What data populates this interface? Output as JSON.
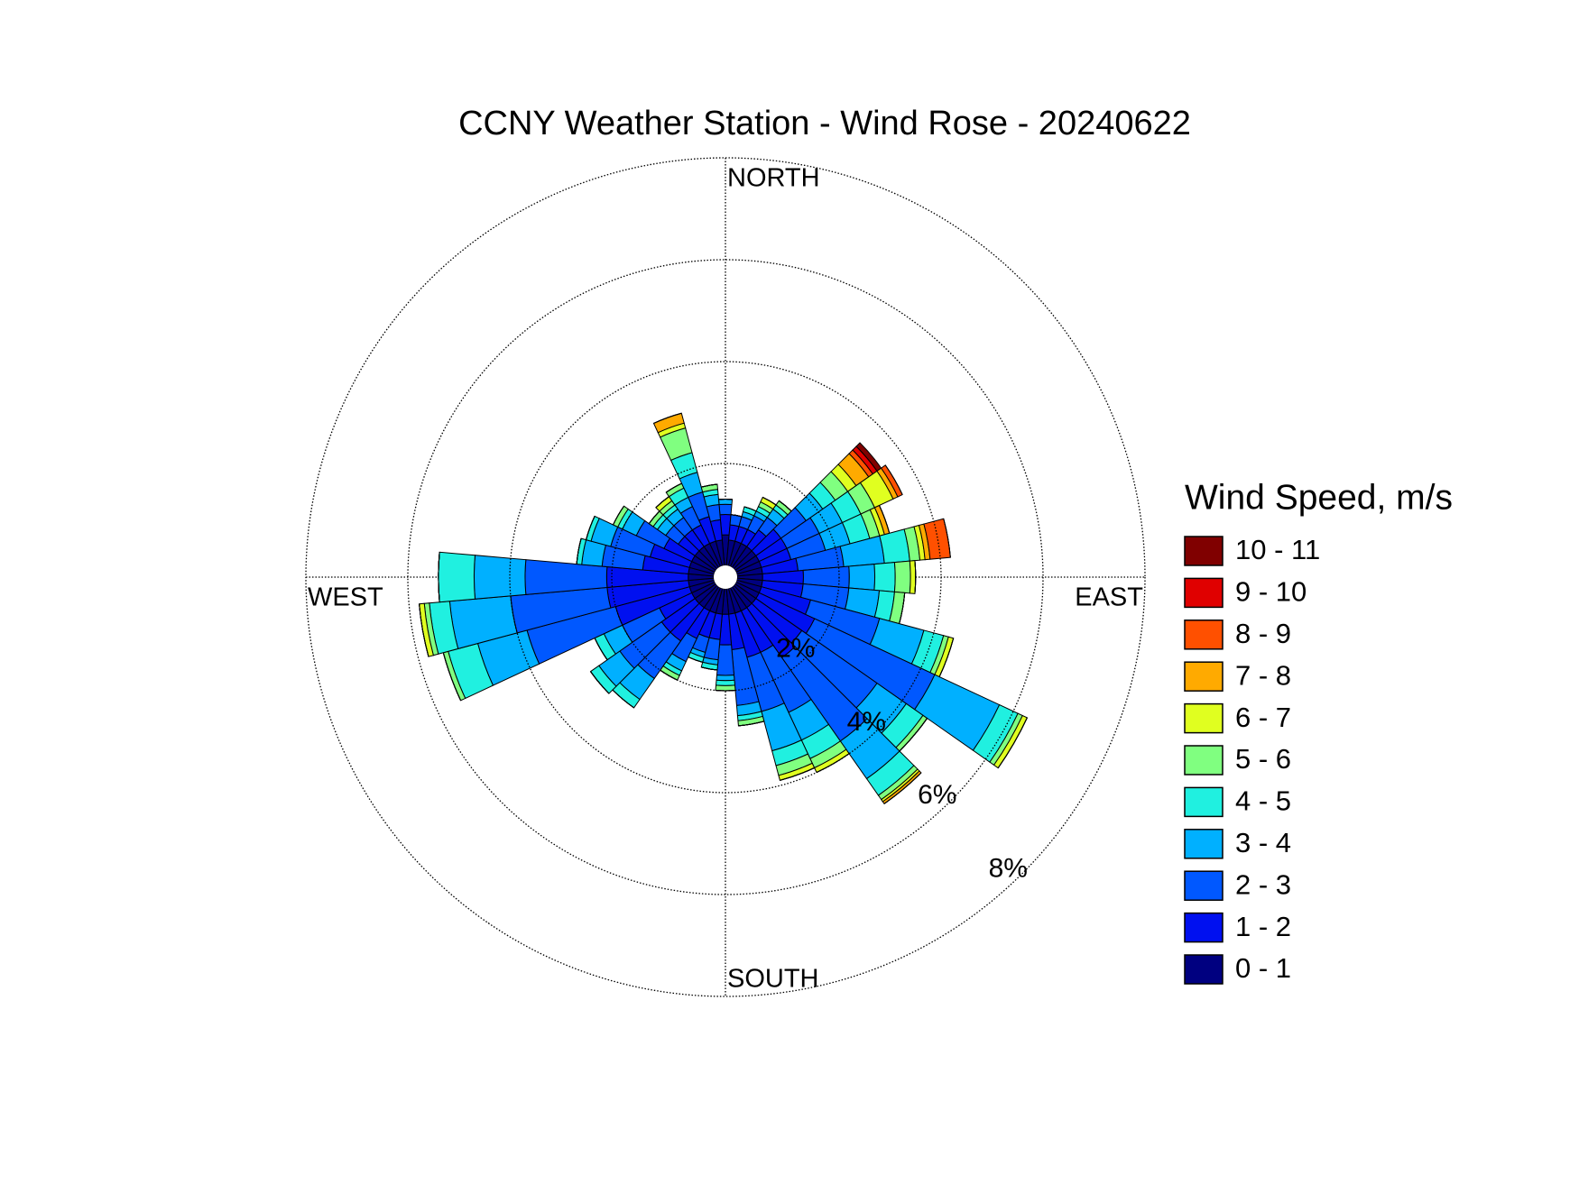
{
  "chart_data": {
    "type": "windrose",
    "title": "CCNY Weather Station - Wind Rose - 20240622",
    "legend_title": "Wind Speed, m/s",
    "direction_labels": [
      "NORTH",
      "EAST",
      "SOUTH",
      "WEST"
    ],
    "x": [
      0,
      10,
      20,
      30,
      40,
      50,
      60,
      70,
      80,
      90,
      100,
      110,
      120,
      130,
      140,
      150,
      160,
      170,
      180,
      190,
      200,
      210,
      220,
      230,
      240,
      250,
      260,
      270,
      280,
      290,
      300,
      310,
      320,
      330,
      340,
      350
    ],
    "rlim": [
      0,
      8
    ],
    "rticks": [
      {
        "value": 2,
        "label": "2%"
      },
      {
        "value": 4,
        "label": "4%"
      },
      {
        "value": 6,
        "label": "6%"
      },
      {
        "value": 8,
        "label": "8%"
      }
    ],
    "grid": true,
    "legend": "right",
    "series": [
      {
        "name": "0 - 1",
        "color": "#000080",
        "values": [
          0.6,
          0.5,
          0.5,
          0.5,
          0.5,
          0.5,
          0.5,
          0.5,
          0.5,
          0.5,
          0.5,
          0.5,
          0.5,
          0.5,
          0.5,
          0.5,
          0.5,
          0.5,
          0.5,
          0.5,
          0.5,
          0.5,
          0.5,
          0.5,
          0.5,
          0.5,
          0.5,
          0.5,
          0.5,
          0.5,
          0.5,
          0.5,
          0.5,
          0.5,
          0.5,
          0.5
        ]
      },
      {
        "name": "1 - 2",
        "color": "#0010f0",
        "values": [
          0.4,
          0.3,
          0.3,
          0.3,
          0.4,
          0.6,
          0.6,
          0.6,
          0.7,
          0.8,
          0.8,
          1.0,
          1.2,
          1.1,
          1.2,
          0.9,
          0.9,
          0.7,
          0.6,
          0.5,
          0.5,
          0.6,
          0.8,
          0.8,
          0.7,
          1.5,
          1.6,
          1.6,
          0.9,
          0.8,
          0.6,
          0.4,
          0.4,
          0.4,
          0.5,
          0.4
        ]
      },
      {
        "name": "2 - 3",
        "color": "#0058ff",
        "values": [
          0.2,
          0.2,
          0.2,
          0.3,
          0.3,
          0.6,
          0.7,
          0.7,
          0.9,
          0.9,
          0.9,
          1.4,
          2.6,
          1.8,
          2.0,
          1.3,
          1.1,
          1.1,
          0.6,
          0.4,
          0.3,
          0.5,
          0.9,
          1.0,
          0.8,
          1.8,
          1.9,
          1.6,
          0.8,
          0.8,
          0.6,
          0.3,
          0.3,
          0.4,
          0.5,
          0.3
        ]
      },
      {
        "name": "3 - 4",
        "color": "#00b0ff",
        "values": [
          0.1,
          0,
          0.1,
          0.1,
          0.2,
          0.4,
          0.5,
          0.5,
          0.8,
          0.5,
          0.6,
          0.9,
          1.4,
          0.7,
          0.9,
          0.6,
          0.8,
          0.2,
          0.1,
          0.1,
          0.1,
          0.2,
          0.5,
          0.5,
          0.4,
          1.0,
          1.2,
          1.0,
          0.4,
          0.4,
          0.3,
          0.2,
          0.2,
          0.2,
          0.4,
          0.2
        ]
      },
      {
        "name": "4 - 5",
        "color": "#20f0e0",
        "values": [
          0,
          0,
          0.1,
          0.1,
          0.1,
          0.3,
          0.4,
          0.4,
          0.5,
          0.4,
          0.3,
          0.4,
          0.4,
          0.4,
          0.4,
          0.4,
          0.3,
          0.1,
          0.1,
          0.1,
          0.1,
          0.1,
          0.2,
          0.2,
          0.2,
          0.6,
          0.4,
          0.7,
          0.1,
          0.1,
          0.1,
          0.1,
          0.1,
          0.2,
          0.4,
          0.1
        ]
      },
      {
        "name": "5 - 6",
        "color": "#80ff80",
        "values": [
          0,
          0,
          0,
          0.1,
          0.1,
          0.3,
          0.3,
          0.2,
          0.2,
          0.3,
          0.2,
          0.1,
          0.1,
          0.1,
          0.1,
          0.2,
          0.2,
          0.1,
          0.1,
          0,
          0,
          0.1,
          0,
          0,
          0,
          0.1,
          0.1,
          0,
          0,
          0,
          0.1,
          0.1,
          0.1,
          0.1,
          0.5,
          0.1
        ]
      },
      {
        "name": "6 - 7",
        "color": "#e0ff20",
        "values": [
          0,
          0,
          0,
          0.1,
          0,
          0.2,
          0.4,
          0.1,
          0.1,
          0.1,
          0,
          0.1,
          0.1,
          0,
          0.05,
          0.1,
          0.1,
          0,
          0,
          0,
          0,
          0,
          0,
          0,
          0,
          0,
          0.1,
          0,
          0,
          0,
          0,
          0,
          0.1,
          0,
          0.1,
          0
        ]
      },
      {
        "name": "7 - 8",
        "color": "#ffaa00",
        "values": [
          0,
          0,
          0,
          0,
          0,
          0.3,
          0.1,
          0.1,
          0.1,
          0,
          0,
          0,
          0,
          0,
          0.05,
          0,
          0,
          0,
          0,
          0,
          0,
          0,
          0,
          0,
          0,
          0,
          0,
          0,
          0,
          0,
          0,
          0,
          0,
          0,
          0.2,
          0
        ]
      },
      {
        "name": "8 - 9",
        "color": "#ff5000",
        "values": [
          0,
          0,
          0,
          0,
          0,
          0.1,
          0.1,
          0,
          0.4,
          0,
          0,
          0,
          0,
          0,
          0,
          0,
          0,
          0,
          0,
          0,
          0,
          0,
          0,
          0,
          0,
          0,
          0,
          0,
          0,
          0,
          0,
          0,
          0,
          0,
          0,
          0
        ]
      },
      {
        "name": "9 - 10",
        "color": "#e00000",
        "values": [
          0,
          0,
          0,
          0,
          0,
          0.1,
          0,
          0,
          0,
          0,
          0,
          0,
          0,
          0,
          0,
          0,
          0,
          0,
          0,
          0,
          0,
          0,
          0,
          0,
          0,
          0,
          0,
          0,
          0,
          0,
          0,
          0,
          0,
          0,
          0,
          0
        ]
      },
      {
        "name": "10 - 11",
        "color": "#800000",
        "values": [
          0,
          0,
          0,
          0,
          0,
          0.1,
          0,
          0,
          0,
          0,
          0,
          0,
          0,
          0,
          0,
          0,
          0,
          0,
          0,
          0,
          0,
          0,
          0,
          0,
          0,
          0,
          0,
          0,
          0,
          0,
          0,
          0,
          0,
          0,
          0,
          0
        ]
      }
    ]
  }
}
